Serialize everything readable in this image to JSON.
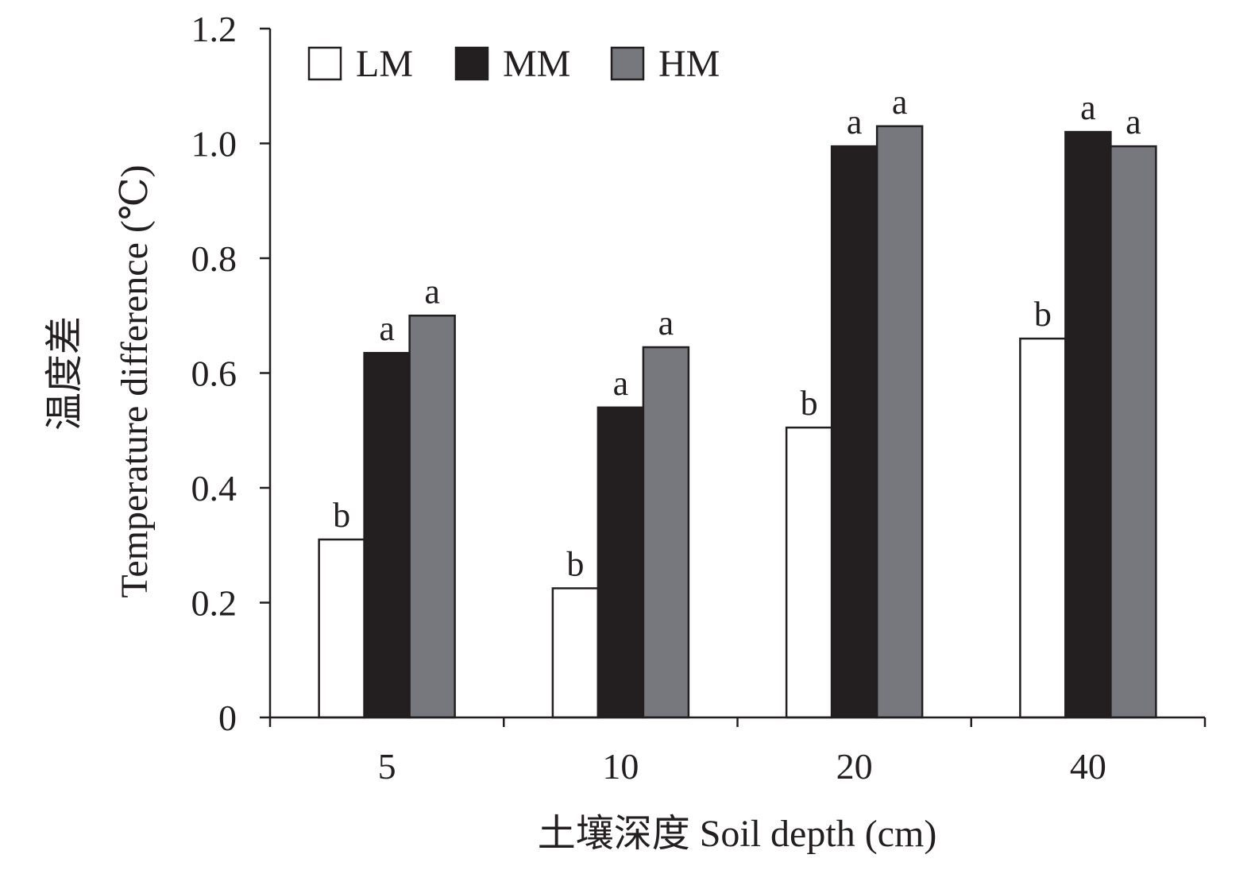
{
  "chart_data": {
    "type": "bar",
    "categories": [
      "5",
      "10",
      "20",
      "40"
    ],
    "series": [
      {
        "name": "LM",
        "color": "#ffffff",
        "values": [
          0.31,
          0.225,
          0.505,
          0.66
        ],
        "sig": [
          "b",
          "b",
          "b",
          "b"
        ]
      },
      {
        "name": "MM",
        "color": "#231f20",
        "values": [
          0.635,
          0.54,
          0.995,
          1.02
        ],
        "sig": [
          "a",
          "a",
          "a",
          "a"
        ]
      },
      {
        "name": "HM",
        "color": "#76787d",
        "values": [
          0.7,
          0.645,
          1.03,
          0.995
        ],
        "sig": [
          "a",
          "a",
          "a",
          "a"
        ]
      }
    ],
    "ylim": [
      0,
      1.2
    ],
    "yticks": [
      "0",
      "0.2",
      "0.4",
      "0.6",
      "0.8",
      "1.0",
      "1.2"
    ],
    "xlabel": "土壤深度 Soil depth (cm)",
    "ylabel_cn": "温度差",
    "ylabel_en": "Temperature difference (℃)",
    "legend_position": "top-left",
    "grid": false
  }
}
